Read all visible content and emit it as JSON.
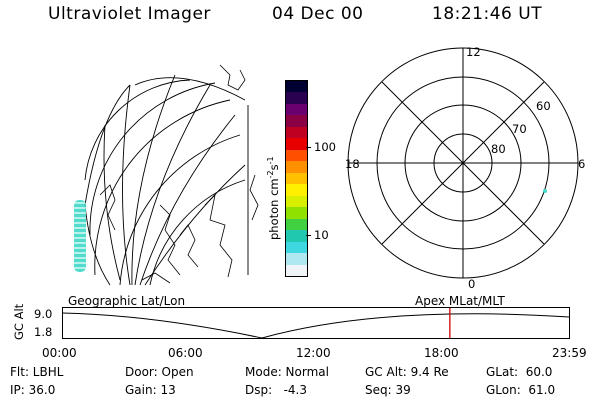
{
  "header": {
    "instrument": "Ultraviolet Imager",
    "date": "04 Dec 00",
    "time": "18:21:46 UT"
  },
  "colorbar": {
    "unit_text": "photon cm",
    "unit_exp1": "-2",
    "unit_s": "s",
    "unit_exp2": "-1",
    "tick_100": "100",
    "tick_10": "10",
    "scale": "log",
    "colors": [
      "#000033",
      "#2a0050",
      "#6a0070",
      "#8b0045",
      "#c00020",
      "#e80000",
      "#ff5000",
      "#ff9000",
      "#ffc000",
      "#fff000",
      "#d8f000",
      "#90e000",
      "#40d040",
      "#20c8b0",
      "#40d8e0",
      "#b0e8f0",
      "#f0f4f8"
    ]
  },
  "left_map": {
    "caption": "Geographic Lat/Lon",
    "aurora_color": "#40d8c8"
  },
  "polar_plot": {
    "caption": "Apex MLat/MLT",
    "mlt_top": "12",
    "mlt_bottom": "0",
    "mlt_left": "18",
    "mlt_right": "6",
    "lat_60": "60",
    "lat_70": "70",
    "lat_80": "80",
    "spot_color": "#40d8c8"
  },
  "orbit_plot": {
    "ylabel": "GC Alt",
    "y_top": "9.0",
    "y_bottom": "1.8",
    "x_ticks": [
      "00:00",
      "06:00",
      "12:00",
      "18:00",
      "23:59"
    ],
    "marker_time_hours": 18.36,
    "marker_color": "#d00000"
  },
  "status": {
    "flt": "Flt: LBHL",
    "ip": "IP: 36.0",
    "door": "Door: Open",
    "gain": "Gain: 13",
    "mode": "Mode: Normal",
    "dsp": "Dsp:   -4.3",
    "gc_alt": "GC Alt: 9.4 Re",
    "seq": "Seq: 39",
    "glat": "GLat:  60.0",
    "glon": "GLon:  61.0"
  }
}
